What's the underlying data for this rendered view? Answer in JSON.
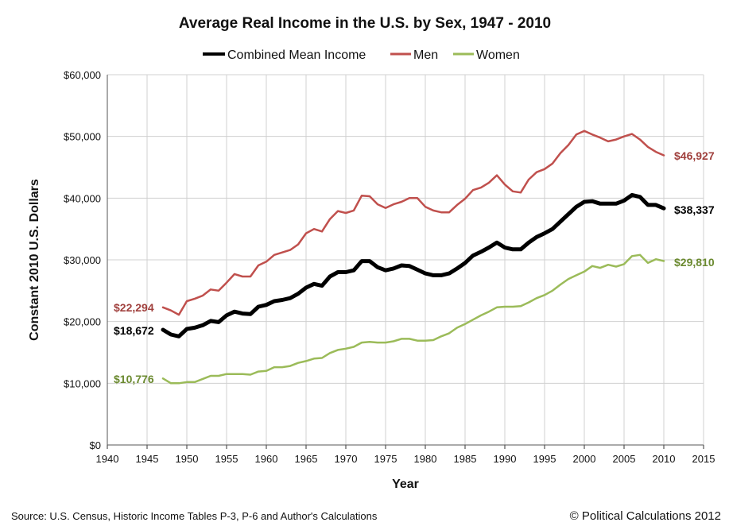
{
  "chart_data": {
    "type": "line",
    "title": "Average Real Income in the U.S. by Sex, 1947 - 2010",
    "xlabel": "Year",
    "ylabel": "Constant 2010 U.S. Dollars",
    "xlim": [
      1940,
      2015
    ],
    "ylim": [
      0,
      60000
    ],
    "xticks": [
      1940,
      1945,
      1950,
      1955,
      1960,
      1965,
      1970,
      1975,
      1980,
      1985,
      1990,
      1995,
      2000,
      2005,
      2010,
      2015
    ],
    "xtick_labels": [
      "1940",
      "1945",
      "1950",
      "1955",
      "1960",
      "1965",
      "1970",
      "1975",
      "1980",
      "1985",
      "1990",
      "1995",
      "2000",
      "2005",
      "2010",
      "2015"
    ],
    "yticks": [
      0,
      10000,
      20000,
      30000,
      40000,
      50000,
      60000
    ],
    "ytick_labels": [
      "$0",
      "$10,000",
      "$20,000",
      "$30,000",
      "$40,000",
      "$50,000",
      "$60,000"
    ],
    "grid": true,
    "legend_position": "top-center",
    "x": [
      1947,
      1948,
      1949,
      1950,
      1951,
      1952,
      1953,
      1954,
      1955,
      1956,
      1957,
      1958,
      1959,
      1960,
      1961,
      1962,
      1963,
      1964,
      1965,
      1966,
      1967,
      1968,
      1969,
      1970,
      1971,
      1972,
      1973,
      1974,
      1975,
      1976,
      1977,
      1978,
      1979,
      1980,
      1981,
      1982,
      1983,
      1984,
      1985,
      1986,
      1987,
      1988,
      1989,
      1990,
      1991,
      1992,
      1993,
      1994,
      1995,
      1996,
      1997,
      1998,
      1999,
      2000,
      2001,
      2002,
      2003,
      2004,
      2005,
      2006,
      2007,
      2008,
      2009,
      2010
    ],
    "series": [
      {
        "name": "Combined Mean Income",
        "color": "#000000",
        "values": [
          18672,
          17900,
          17600,
          18800,
          19000,
          19400,
          20100,
          19900,
          21000,
          21600,
          21300,
          21200,
          22400,
          22700,
          23300,
          23500,
          23800,
          24500,
          25500,
          26100,
          25800,
          27300,
          28000,
          28000,
          28300,
          29800,
          29800,
          28800,
          28300,
          28600,
          29100,
          29000,
          28400,
          27800,
          27500,
          27500,
          27800,
          28600,
          29500,
          30700,
          31300,
          32000,
          32800,
          32000,
          31700,
          31700,
          32800,
          33700,
          34300,
          35000,
          36200,
          37400,
          38600,
          39400,
          39500,
          39100,
          39100,
          39100,
          39600,
          40500,
          40200,
          38900,
          38900,
          38337
        ]
      },
      {
        "name": "Men",
        "color": "#c0504d",
        "values": [
          22294,
          21800,
          21100,
          23300,
          23700,
          24200,
          25200,
          25000,
          26300,
          27700,
          27300,
          27300,
          29100,
          29700,
          30800,
          31200,
          31600,
          32500,
          34300,
          35000,
          34600,
          36600,
          37900,
          37600,
          38000,
          40400,
          40300,
          39000,
          38400,
          39000,
          39400,
          40000,
          40000,
          38600,
          38000,
          37700,
          37700,
          38900,
          39900,
          41300,
          41700,
          42500,
          43700,
          42200,
          41100,
          40900,
          43000,
          44200,
          44700,
          45600,
          47300,
          48600,
          50300,
          50900,
          50300,
          49800,
          49200,
          49500,
          50000,
          50400,
          49500,
          48300,
          47500,
          46927
        ]
      },
      {
        "name": "Women",
        "color": "#9bbb59",
        "values": [
          10776,
          10000,
          10000,
          10200,
          10200,
          10700,
          11200,
          11200,
          11500,
          11500,
          11500,
          11400,
          11900,
          12000,
          12600,
          12600,
          12800,
          13300,
          13600,
          14000,
          14100,
          14900,
          15400,
          15600,
          15900,
          16600,
          16700,
          16600,
          16600,
          16800,
          17200,
          17200,
          16900,
          16900,
          17000,
          17600,
          18100,
          19000,
          19600,
          20300,
          21000,
          21600,
          22300,
          22400,
          22400,
          22500,
          23100,
          23800,
          24300,
          25000,
          26000,
          26900,
          27500,
          28100,
          29000,
          28700,
          29200,
          28900,
          29300,
          30600,
          30800,
          29500,
          30100,
          29810
        ]
      }
    ],
    "annotations": {
      "men_start": "$22,294",
      "combined_start": "$18,672",
      "women_start": "$10,776",
      "men_end": "$46,927",
      "combined_end": "$38,337",
      "women_end": "$29,810"
    }
  },
  "footer": {
    "source": "Source: U.S. Census, Historic Income Tables P-3, P-6 and Author's Calculations",
    "credit": "© Political Calculations 2012"
  }
}
